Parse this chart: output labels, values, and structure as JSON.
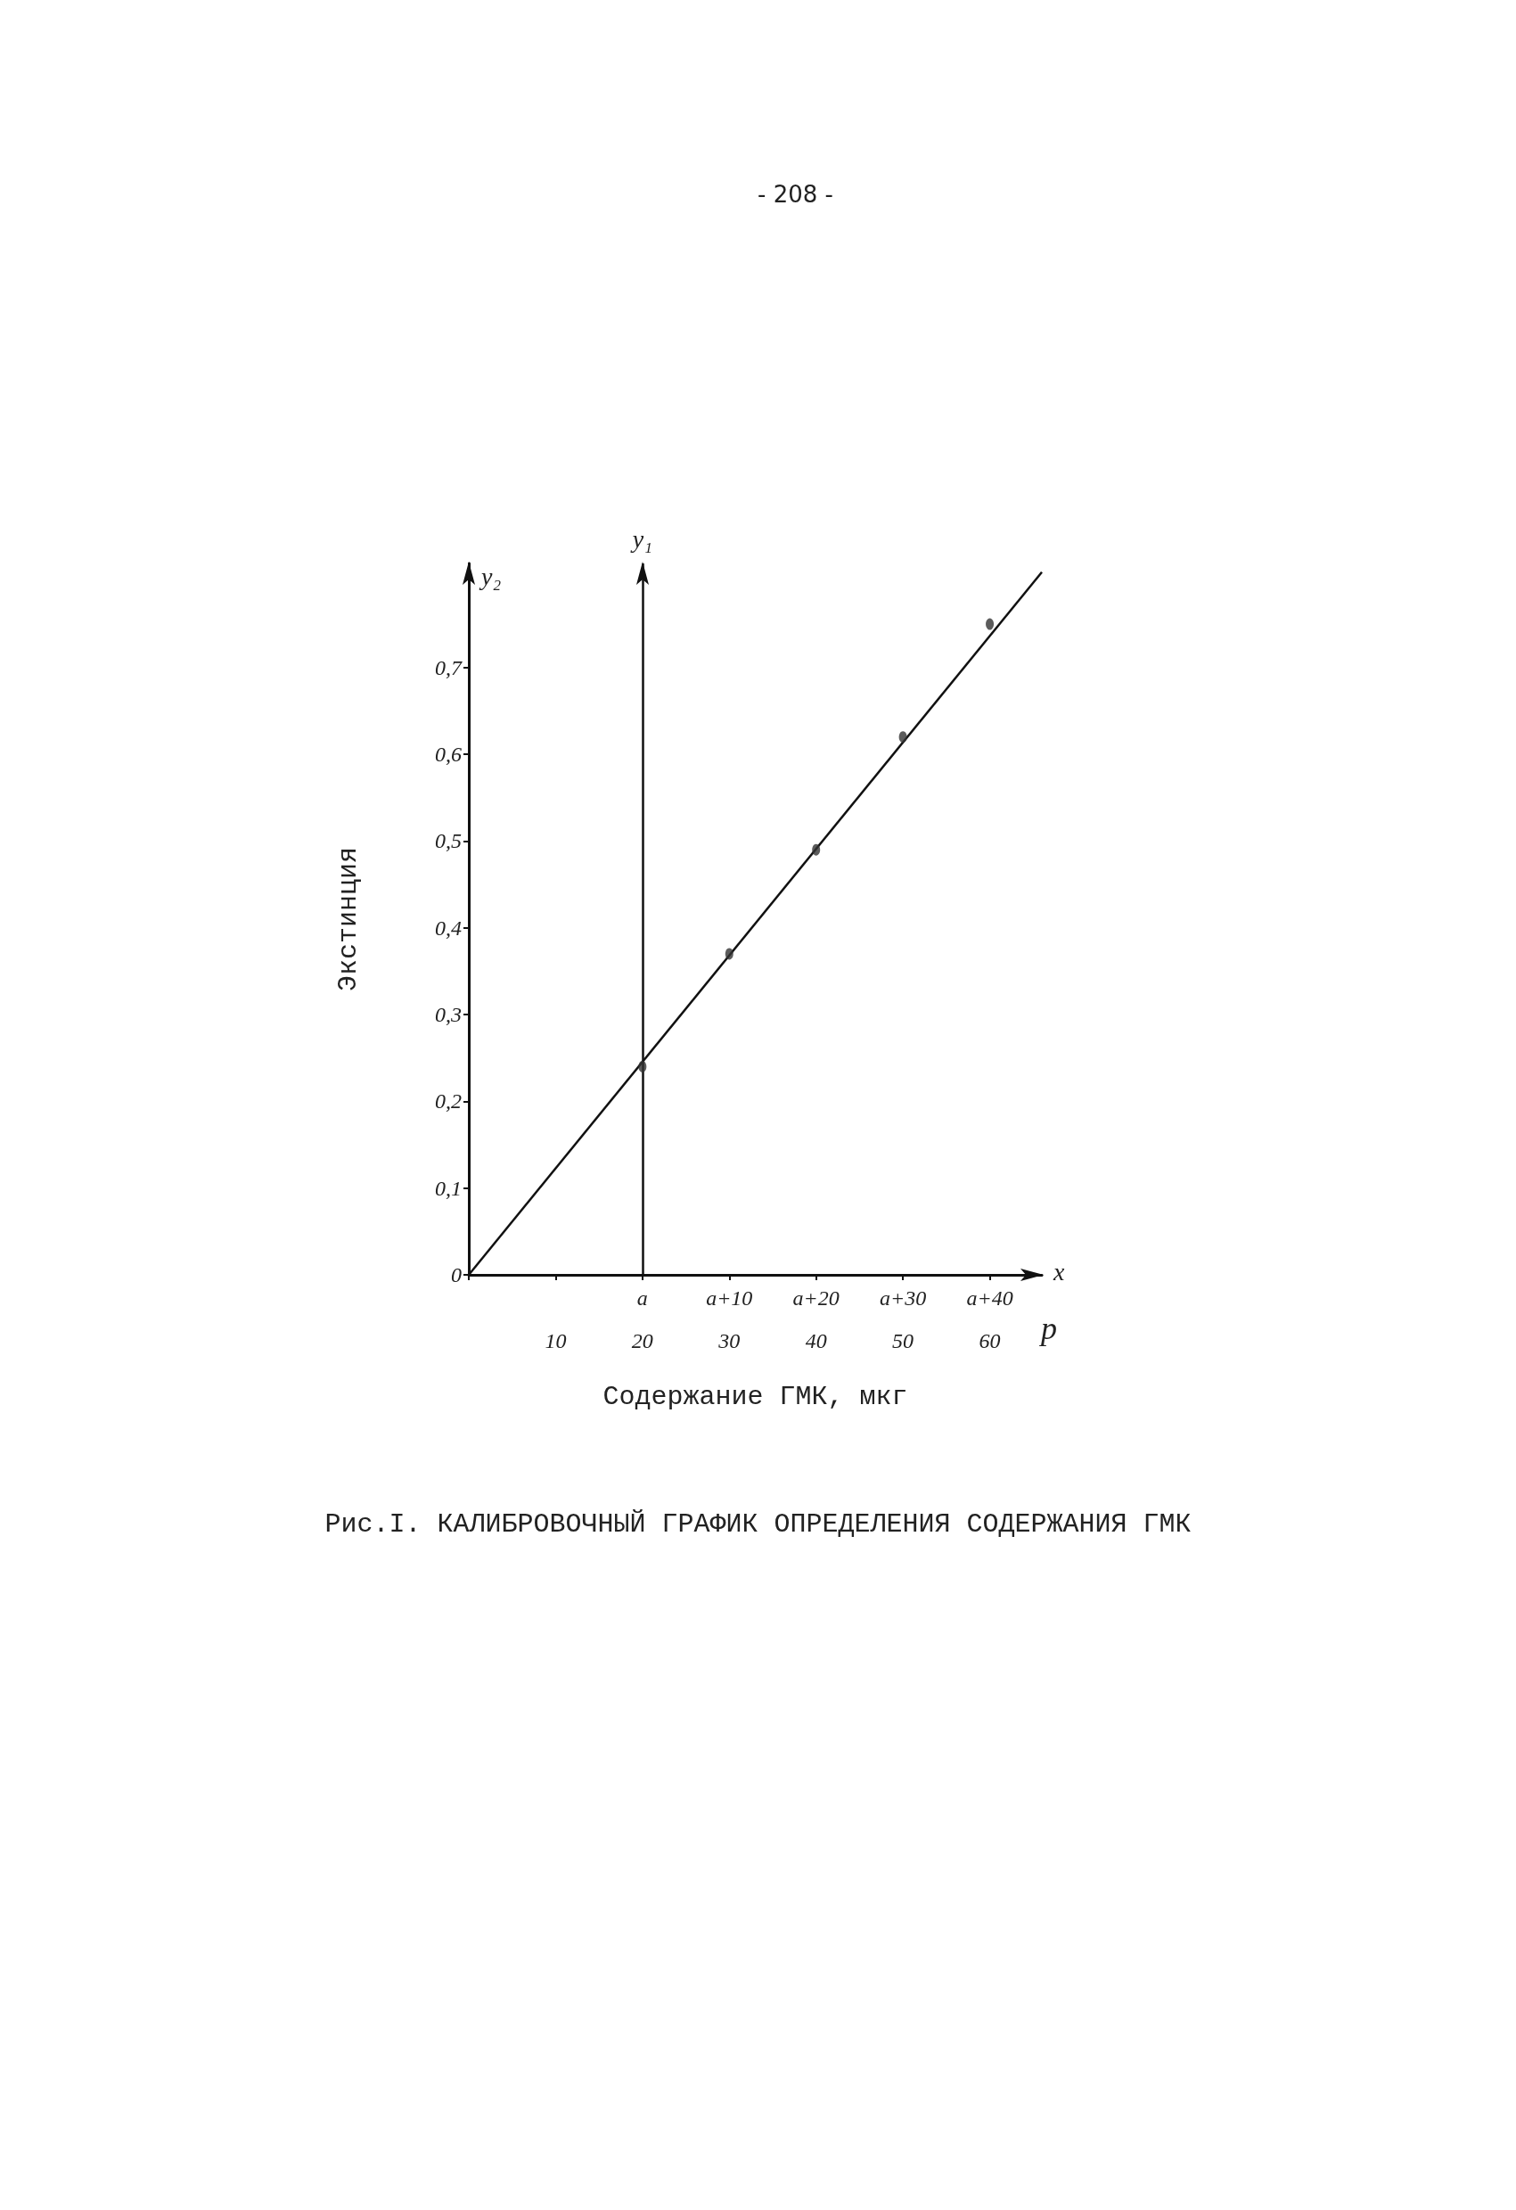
{
  "chart_data": {
    "type": "scatter",
    "title": "Рис.I. КАЛИБРОВОЧНЫЙ ГРАФИК ОПРЕДЕЛЕНИЯ СОДЕРЖАНИЯ ГМК",
    "xlabel": "Содержание ГМК, мкг",
    "ylabel": "Экстинция",
    "annotations": [
      "- 208 -",
      "y₂",
      "p",
      "x",
      "a",
      "a+10",
      "a+20",
      "a+30",
      "a+40"
    ],
    "series": [
      {
        "color": "#333333",
        "marker": "circle",
        "x": [
          20,
          30,
          40,
          50,
          60
        ],
        "values": [
          0.24,
          0.37,
          0.49,
          0.62,
          0.75
        ]
      },
      {
        "type": "line",
        "color": "#111111",
        "marker": "none",
        "line_style": "solid",
        "x": [
          0,
          66
        ],
        "values": [
          0,
          0.81
        ]
      }
    ],
    "ref_lines": [
      {
        "axis": "x",
        "value": 20,
        "label": "y₁",
        "color": "#111111"
      }
    ],
    "xlim": [
      0,
      66
    ],
    "xticks": [
      {
        "value": 0,
        "label": null
      },
      10,
      20,
      30,
      40,
      50,
      60
    ],
    "ylim": [
      0,
      0.82
    ],
    "yticks": [
      {
        "value": 0,
        "label": "0"
      },
      {
        "value": 0.1,
        "label": "0,1"
      },
      {
        "value": 0.2,
        "label": "0,2"
      },
      {
        "value": 0.3,
        "label": "0,3"
      },
      {
        "value": 0.4,
        "label": "0,4"
      },
      {
        "value": 0.5,
        "label": "0,5"
      },
      {
        "value": 0.6,
        "label": "0,6"
      },
      {
        "value": 0.7,
        "label": "0,7"
      }
    ],
    "grid": false
  }
}
